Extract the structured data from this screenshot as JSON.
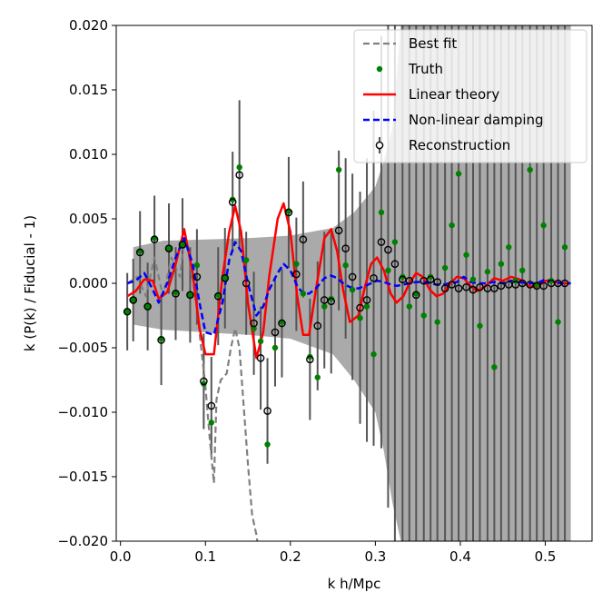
{
  "chart_data": {
    "type": "scatter",
    "xlabel": "k h/Mpc",
    "ylabel": "k (P(k) / Fiducial - 1)",
    "xlim": [
      -0.005,
      0.555
    ],
    "ylim": [
      -0.02,
      0.02
    ],
    "xticks": [
      0.0,
      0.1,
      0.2,
      0.3,
      0.4,
      0.5
    ],
    "xtick_labels": [
      "0.0",
      "0.1",
      "0.2",
      "0.3",
      "0.4",
      "0.5"
    ],
    "yticks": [
      -0.02,
      -0.015,
      -0.01,
      -0.005,
      0.0,
      0.005,
      0.01,
      0.015,
      0.02
    ],
    "ytick_labels": [
      "−0.020",
      "−0.015",
      "−0.010",
      "−0.005",
      "0.000",
      "0.005",
      "0.010",
      "0.015",
      "0.020"
    ],
    "legend": {
      "location": "top-right",
      "entries": [
        "Best fit",
        "Truth",
        "Linear theory",
        "Non-linear damping",
        "Reconstruction"
      ]
    },
    "colors": {
      "best_fit": "#808080",
      "truth": "#008000",
      "linear": "#ff0000",
      "nonlinear": "#0000ff",
      "reconstruction": "#000000",
      "band": "#aaaaaa",
      "errorbar": "#555555"
    },
    "uncertainty_band": {
      "x": [
        0.015,
        0.05,
        0.1,
        0.15,
        0.2,
        0.25,
        0.275,
        0.3,
        0.31,
        0.32,
        0.33,
        0.34,
        0.37,
        0.42,
        0.47,
        0.5,
        0.53
      ],
      "upper": [
        0.0028,
        0.0033,
        0.0034,
        0.0035,
        0.0037,
        0.0043,
        0.0055,
        0.0075,
        0.0095,
        0.012,
        0.02,
        0.02,
        0.02,
        0.02,
        0.02,
        0.02,
        0.02
      ],
      "lower": [
        -0.0032,
        -0.0036,
        -0.0038,
        -0.004,
        -0.0043,
        -0.0055,
        -0.0075,
        -0.01,
        -0.013,
        -0.017,
        -0.02,
        -0.02,
        -0.02,
        -0.02,
        -0.02,
        -0.02,
        -0.02
      ]
    },
    "series": [
      {
        "name": "Best fit",
        "style": "dashed-line",
        "x": [
          0.008,
          0.02,
          0.03,
          0.04,
          0.05,
          0.06,
          0.07,
          0.075,
          0.08,
          0.09,
          0.1,
          0.105,
          0.11,
          0.113,
          0.118,
          0.125,
          0.13,
          0.135,
          0.14,
          0.15,
          0.155,
          0.16,
          0.163
        ],
        "y": [
          0.0,
          0.0005,
          -0.001,
          0.002,
          -0.001,
          0.002,
          0.0005,
          0.0035,
          0.0025,
          -0.002,
          -0.008,
          -0.012,
          -0.0155,
          -0.009,
          -0.0075,
          -0.007,
          -0.005,
          -0.0035,
          -0.005,
          -0.014,
          -0.018,
          -0.0195,
          -0.021
        ]
      },
      {
        "name": "Linear theory",
        "style": "solid-line",
        "x": [
          0.008,
          0.018,
          0.028,
          0.038,
          0.045,
          0.055,
          0.065,
          0.075,
          0.085,
          0.093,
          0.1,
          0.11,
          0.12,
          0.128,
          0.135,
          0.142,
          0.15,
          0.16,
          0.168,
          0.175,
          0.185,
          0.192,
          0.2,
          0.208,
          0.215,
          0.222,
          0.23,
          0.24,
          0.248,
          0.255,
          0.262,
          0.27,
          0.28,
          0.288,
          0.295,
          0.302,
          0.31,
          0.318,
          0.325,
          0.333,
          0.34,
          0.348,
          0.356,
          0.364,
          0.372,
          0.38,
          0.388,
          0.396,
          0.404,
          0.412,
          0.42,
          0.43,
          0.44,
          0.45,
          0.46,
          0.47,
          0.48,
          0.49,
          0.5,
          0.51,
          0.52,
          0.53
        ],
        "y": [
          -0.001,
          -0.0006,
          0.0003,
          0.0002,
          -0.0012,
          -0.0007,
          0.0015,
          0.0042,
          0.0008,
          -0.0035,
          -0.0055,
          -0.0055,
          0.0005,
          0.004,
          0.006,
          0.004,
          -0.0015,
          -0.0058,
          -0.0038,
          0.0005,
          0.005,
          0.0062,
          0.004,
          -0.001,
          -0.004,
          -0.004,
          -0.0005,
          0.0035,
          0.0042,
          0.0025,
          -0.0005,
          -0.003,
          -0.0025,
          -0.0002,
          0.0015,
          0.002,
          0.001,
          -0.0008,
          -0.0015,
          -0.001,
          0.0,
          0.0008,
          0.0005,
          -0.0005,
          -0.001,
          -0.0008,
          0.0,
          0.0005,
          0.0004,
          -0.0002,
          -0.0006,
          -0.0002,
          0.0004,
          0.0002,
          0.0005,
          0.0003,
          -0.0002,
          -0.0003,
          0.0002,
          0.0001,
          0.0,
          0.0
        ]
      },
      {
        "name": "Non-linear damping",
        "style": "dashed-line",
        "x": [
          0.008,
          0.018,
          0.028,
          0.038,
          0.045,
          0.055,
          0.065,
          0.075,
          0.085,
          0.093,
          0.1,
          0.11,
          0.12,
          0.128,
          0.135,
          0.142,
          0.15,
          0.16,
          0.168,
          0.175,
          0.185,
          0.192,
          0.2,
          0.208,
          0.215,
          0.222,
          0.23,
          0.24,
          0.248,
          0.255,
          0.262,
          0.27,
          0.28,
          0.288,
          0.295,
          0.302,
          0.31,
          0.318,
          0.325,
          0.333,
          0.34,
          0.348,
          0.356,
          0.364,
          0.372,
          0.38,
          0.388,
          0.396,
          0.404,
          0.412,
          0.42,
          0.43,
          0.44,
          0.45,
          0.46,
          0.47,
          0.48,
          0.49,
          0.5,
          0.51,
          0.52,
          0.53
        ],
        "y": [
          0.0,
          0.0002,
          0.0008,
          -0.0005,
          -0.0015,
          0.0,
          0.002,
          0.0035,
          0.0015,
          -0.0015,
          -0.0038,
          -0.004,
          -0.0015,
          0.0018,
          0.0032,
          0.0025,
          0.0,
          -0.0025,
          -0.0018,
          -0.0005,
          0.0008,
          0.0015,
          0.001,
          -0.0002,
          -0.0008,
          -0.0008,
          -0.0004,
          0.0004,
          0.0006,
          0.0004,
          0.0,
          -0.0003,
          -0.0004,
          -0.0002,
          0.0,
          0.0002,
          0.0001,
          -0.0001,
          -0.0002,
          -0.0001,
          0.0,
          0.0001,
          0.0001,
          0.0,
          -0.0001,
          -0.0001,
          0.0,
          0.0001,
          0.0005,
          0.0001,
          0.0,
          0.0,
          0.0001,
          0.0,
          0.0002,
          0.0001,
          0.0,
          0.0,
          0.0003,
          0.0001,
          0.0,
          0.0
        ]
      },
      {
        "name": "Truth",
        "style": "green-dots",
        "x": [
          0.008,
          0.015,
          0.023,
          0.032,
          0.04,
          0.048,
          0.057,
          0.065,
          0.073,
          0.082,
          0.09,
          0.098,
          0.107,
          0.115,
          0.123,
          0.132,
          0.14,
          0.148,
          0.157,
          0.165,
          0.173,
          0.182,
          0.19,
          0.198,
          0.207,
          0.215,
          0.223,
          0.232,
          0.24,
          0.248,
          0.257,
          0.265,
          0.273,
          0.282,
          0.29,
          0.298,
          0.307,
          0.315,
          0.323,
          0.332,
          0.34,
          0.348,
          0.357,
          0.365,
          0.373,
          0.382,
          0.39,
          0.398,
          0.407,
          0.415,
          0.423,
          0.432,
          0.44,
          0.448,
          0.457,
          0.465,
          0.473,
          0.482,
          0.49,
          0.498,
          0.507,
          0.515,
          0.523
        ],
        "y": [
          -0.0022,
          -0.0013,
          0.0025,
          -0.0018,
          0.0035,
          -0.0043,
          0.0027,
          -0.0007,
          0.003,
          -0.0009,
          0.0014,
          -0.0078,
          -0.0108,
          -0.0009,
          0.0004,
          0.0065,
          0.009,
          0.0018,
          -0.0035,
          -0.0045,
          -0.0125,
          -0.005,
          -0.003,
          0.0056,
          0.0015,
          -0.0008,
          -0.0057,
          -0.0073,
          -0.0018,
          -0.0012,
          0.0088,
          0.0014,
          -0.0005,
          -0.0027,
          -0.0018,
          -0.0055,
          0.0055,
          0.001,
          0.0032,
          0.0005,
          -0.0018,
          -0.0008,
          -0.0025,
          0.0005,
          -0.003,
          0.0012,
          0.0045,
          0.0085,
          0.0022,
          0.0003,
          -0.0033,
          0.0009,
          -0.0065,
          0.0015,
          0.0028,
          0.0002,
          0.001,
          0.0088,
          -0.0001,
          0.0045,
          0.0002,
          -0.003,
          0.0028
        ]
      },
      {
        "name": "Reconstruction",
        "style": "open-circles",
        "x": [
          0.008,
          0.015,
          0.023,
          0.032,
          0.04,
          0.048,
          0.057,
          0.065,
          0.073,
          0.082,
          0.09,
          0.098,
          0.107,
          0.115,
          0.123,
          0.132,
          0.14,
          0.148,
          0.157,
          0.165,
          0.173,
          0.182,
          0.19,
          0.198,
          0.207,
          0.215,
          0.223,
          0.232,
          0.24,
          0.248,
          0.257,
          0.265,
          0.273,
          0.282,
          0.29,
          0.298,
          0.307,
          0.315,
          0.323,
          0.332,
          0.34,
          0.348,
          0.357,
          0.365,
          0.373,
          0.382,
          0.39,
          0.398,
          0.407,
          0.415,
          0.423,
          0.432,
          0.44,
          0.448,
          0.457,
          0.465,
          0.473,
          0.482,
          0.49,
          0.498,
          0.507,
          0.515,
          0.523
        ],
        "y": [
          -0.0022,
          -0.0013,
          0.0024,
          -0.0018,
          0.0034,
          -0.0044,
          0.0027,
          -0.0008,
          0.003,
          -0.0009,
          0.0005,
          -0.0076,
          -0.0095,
          -0.001,
          0.0004,
          0.0063,
          0.0084,
          0.0,
          -0.0031,
          -0.0058,
          -0.0099,
          -0.0038,
          -0.0031,
          0.0055,
          0.0007,
          0.0034,
          -0.0059,
          -0.0033,
          -0.0013,
          -0.0014,
          0.0041,
          0.0027,
          0.0005,
          -0.0019,
          -0.0013,
          0.0004,
          0.0032,
          0.0026,
          0.0015,
          0.0003,
          0.0002,
          -0.0009,
          0.0002,
          0.0003,
          0.0001,
          -0.0004,
          -0.0001,
          -0.0004,
          -0.0003,
          -0.0005,
          -0.0003,
          -0.0004,
          -0.0004,
          -0.0002,
          -0.0001,
          -0.0001,
          0.0,
          -0.0001,
          -0.0002,
          -0.0002,
          0.0,
          0.0,
          0.0
        ],
        "err": [
          0.003,
          0.0032,
          0.0032,
          0.0034,
          0.0034,
          0.0035,
          0.0035,
          0.0036,
          0.0036,
          0.0037,
          0.0037,
          0.0037,
          0.0038,
          0.0038,
          0.0039,
          0.0039,
          0.0058,
          0.004,
          0.004,
          0.004,
          0.0041,
          0.0042,
          0.0042,
          0.0043,
          0.0044,
          0.0045,
          0.0047,
          0.005,
          0.0053,
          0.0056,
          0.0062,
          0.007,
          0.008,
          0.009,
          0.011,
          0.013,
          0.016,
          0.02,
          0.03,
          0.03,
          0.03,
          0.03,
          0.03,
          0.03,
          0.03,
          0.03,
          0.03,
          0.03,
          0.03,
          0.03,
          0.03,
          0.03,
          0.03,
          0.03,
          0.03,
          0.03,
          0.03,
          0.03,
          0.03,
          0.03,
          0.03,
          0.03,
          0.03
        ]
      }
    ]
  }
}
